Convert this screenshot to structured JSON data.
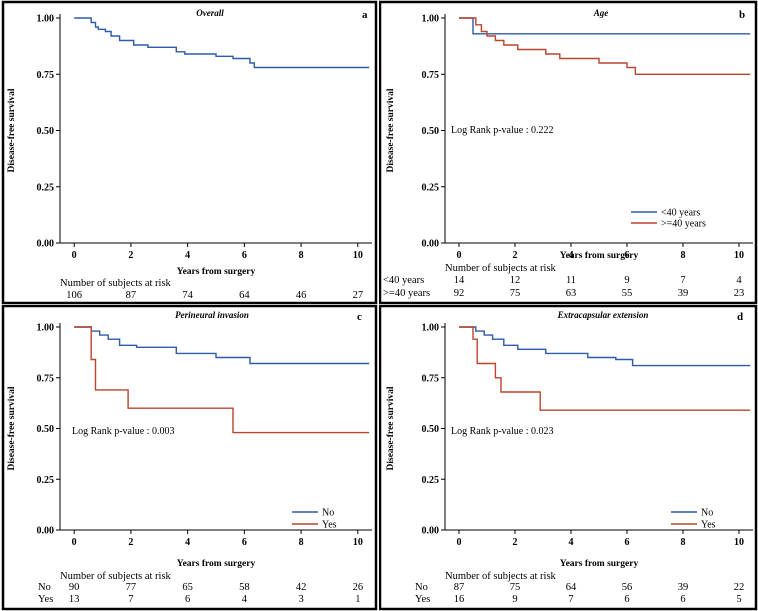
{
  "chart_data": [
    {
      "type": "line",
      "panel": "a",
      "title": "Overall",
      "xlabel": "Years from surgery",
      "ylabel": "Disease-free survival",
      "xlim": [
        -0.5,
        10.5
      ],
      "ylim": [
        0,
        1
      ],
      "xticks": [
        "0",
        "2",
        "4",
        "6",
        "8",
        "10"
      ],
      "yticks": [
        "0.00",
        "0.25",
        "0.50",
        "0.75",
        "1.00"
      ],
      "series": [
        {
          "color": "#2e5aa8",
          "points": [
            [
              0,
              1
            ],
            [
              0.6,
              1
            ],
            [
              0.6,
              0.98
            ],
            [
              0.75,
              0.98
            ],
            [
              0.75,
              0.96
            ],
            [
              0.85,
              0.96
            ],
            [
              0.85,
              0.95
            ],
            [
              1.1,
              0.95
            ],
            [
              1.1,
              0.94
            ],
            [
              1.3,
              0.94
            ],
            [
              1.3,
              0.92
            ],
            [
              1.6,
              0.92
            ],
            [
              1.6,
              0.9
            ],
            [
              2.1,
              0.9
            ],
            [
              2.1,
              0.88
            ],
            [
              2.6,
              0.88
            ],
            [
              2.6,
              0.87
            ],
            [
              3.6,
              0.87
            ],
            [
              3.6,
              0.85
            ],
            [
              3.9,
              0.85
            ],
            [
              3.9,
              0.84
            ],
            [
              5.0,
              0.84
            ],
            [
              5.0,
              0.83
            ],
            [
              5.6,
              0.83
            ],
            [
              5.6,
              0.82
            ],
            [
              6.2,
              0.82
            ],
            [
              6.2,
              0.8
            ],
            [
              6.35,
              0.8
            ],
            [
              6.35,
              0.78
            ],
            [
              10.4,
              0.78
            ]
          ]
        }
      ],
      "risk_table": {
        "header": "Number of subjects at risk",
        "rows": [
          {
            "label": "",
            "values": [
              "106",
              "87",
              "74",
              "64",
              "46",
              "27"
            ]
          }
        ]
      }
    },
    {
      "type": "line",
      "panel": "b",
      "title": "Age",
      "xlabel": "Years from surgery",
      "ylabel": "Disease-free survival",
      "xlim": [
        -0.5,
        10.5
      ],
      "ylim": [
        0,
        1
      ],
      "xticks": [
        "0",
        "2",
        "4",
        "6",
        "8",
        "10"
      ],
      "yticks": [
        "0.00",
        "0.25",
        "0.50",
        "0.75",
        "1.00"
      ],
      "annotation": "Log Rank p-value :  0.222",
      "series": [
        {
          "name": "<40 years",
          "color": "#2e5aa8",
          "points": [
            [
              0,
              1
            ],
            [
              0.5,
              1
            ],
            [
              0.5,
              0.93
            ],
            [
              10.4,
              0.93
            ]
          ]
        },
        {
          "name": ">=40 years",
          "color": "#b8452e",
          "points": [
            [
              0,
              1
            ],
            [
              0.6,
              1
            ],
            [
              0.6,
              0.97
            ],
            [
              0.8,
              0.97
            ],
            [
              0.8,
              0.94
            ],
            [
              1.0,
              0.94
            ],
            [
              1.0,
              0.92
            ],
            [
              1.3,
              0.92
            ],
            [
              1.3,
              0.9
            ],
            [
              1.6,
              0.9
            ],
            [
              1.6,
              0.88
            ],
            [
              2.1,
              0.88
            ],
            [
              2.1,
              0.86
            ],
            [
              3.1,
              0.86
            ],
            [
              3.1,
              0.84
            ],
            [
              3.6,
              0.84
            ],
            [
              3.6,
              0.82
            ],
            [
              5.0,
              0.82
            ],
            [
              5.0,
              0.8
            ],
            [
              6.0,
              0.8
            ],
            [
              6.0,
              0.78
            ],
            [
              6.3,
              0.78
            ],
            [
              6.3,
              0.75
            ],
            [
              10.4,
              0.75
            ]
          ]
        }
      ],
      "risk_table": {
        "header": "Number of subjects at risk",
        "rows": [
          {
            "label": "<40 years",
            "values": [
              "14",
              "12",
              "11",
              "9",
              "7",
              "4"
            ]
          },
          {
            "label": ">=40 years",
            "values": [
              "92",
              "75",
              "63",
              "55",
              "39",
              "23"
            ]
          }
        ]
      }
    },
    {
      "type": "line",
      "panel": "c",
      "title": "Perineural invasion",
      "xlabel": "Years from surgery",
      "ylabel": "Disease-free survival",
      "xlim": [
        -0.5,
        10.5
      ],
      "ylim": [
        0,
        1
      ],
      "xticks": [
        "0",
        "2",
        "4",
        "6",
        "8",
        "10"
      ],
      "yticks": [
        "0.00",
        "0.25",
        "0.50",
        "0.75",
        "1.00"
      ],
      "annotation": "Log Rank p-value :  0.003",
      "series": [
        {
          "name": "No",
          "color": "#2e5aa8",
          "points": [
            [
              0,
              1
            ],
            [
              0.6,
              1
            ],
            [
              0.6,
              0.98
            ],
            [
              0.9,
              0.98
            ],
            [
              0.9,
              0.96
            ],
            [
              1.2,
              0.96
            ],
            [
              1.2,
              0.94
            ],
            [
              1.6,
              0.94
            ],
            [
              1.6,
              0.91
            ],
            [
              2.2,
              0.91
            ],
            [
              2.2,
              0.9
            ],
            [
              3.6,
              0.9
            ],
            [
              3.6,
              0.87
            ],
            [
              5.0,
              0.87
            ],
            [
              5.0,
              0.85
            ],
            [
              6.2,
              0.85
            ],
            [
              6.2,
              0.82
            ],
            [
              10.4,
              0.82
            ]
          ]
        },
        {
          "name": "Yes",
          "color": "#b8452e",
          "points": [
            [
              0,
              1
            ],
            [
              0.6,
              1
            ],
            [
              0.6,
              0.84
            ],
            [
              0.75,
              0.84
            ],
            [
              0.75,
              0.69
            ],
            [
              1.9,
              0.69
            ],
            [
              1.9,
              0.6
            ],
            [
              5.6,
              0.6
            ],
            [
              5.6,
              0.48
            ],
            [
              10.4,
              0.48
            ]
          ]
        }
      ],
      "risk_table": {
        "header": "Number of subjects at risk",
        "rows": [
          {
            "label": "No",
            "values": [
              "90",
              "77",
              "65",
              "58",
              "42",
              "26"
            ]
          },
          {
            "label": "Yes",
            "values": [
              "13",
              "7",
              "6",
              "4",
              "3",
              "1"
            ]
          }
        ]
      }
    },
    {
      "type": "line",
      "panel": "d",
      "title": "Extracapsular extension",
      "xlabel": "Years from surgery",
      "ylabel": "Disease-free survival",
      "xlim": [
        -0.5,
        10.5
      ],
      "ylim": [
        0,
        1
      ],
      "xticks": [
        "0",
        "2",
        "4",
        "6",
        "8",
        "10"
      ],
      "yticks": [
        "0.00",
        "0.25",
        "0.50",
        "0.75",
        "1.00"
      ],
      "annotation": "Log Rank p-value :  0.023",
      "series": [
        {
          "name": "No",
          "color": "#2e5aa8",
          "points": [
            [
              0,
              1
            ],
            [
              0.6,
              1
            ],
            [
              0.6,
              0.98
            ],
            [
              0.9,
              0.98
            ],
            [
              0.9,
              0.96
            ],
            [
              1.2,
              0.96
            ],
            [
              1.2,
              0.94
            ],
            [
              1.6,
              0.94
            ],
            [
              1.6,
              0.91
            ],
            [
              2.1,
              0.91
            ],
            [
              2.1,
              0.89
            ],
            [
              3.1,
              0.89
            ],
            [
              3.1,
              0.87
            ],
            [
              4.6,
              0.87
            ],
            [
              4.6,
              0.85
            ],
            [
              5.6,
              0.85
            ],
            [
              5.6,
              0.84
            ],
            [
              6.2,
              0.84
            ],
            [
              6.2,
              0.81
            ],
            [
              10.4,
              0.81
            ]
          ]
        },
        {
          "name": "Yes",
          "color": "#b8452e",
          "points": [
            [
              0,
              1
            ],
            [
              0.5,
              1
            ],
            [
              0.5,
              0.94
            ],
            [
              0.65,
              0.94
            ],
            [
              0.65,
              0.82
            ],
            [
              1.3,
              0.82
            ],
            [
              1.3,
              0.75
            ],
            [
              1.5,
              0.75
            ],
            [
              1.5,
              0.68
            ],
            [
              2.9,
              0.68
            ],
            [
              2.9,
              0.59
            ],
            [
              10.4,
              0.59
            ]
          ]
        }
      ],
      "risk_table": {
        "header": "Number of subjects at risk",
        "rows": [
          {
            "label": "No",
            "values": [
              "87",
              "75",
              "64",
              "56",
              "39",
              "22"
            ]
          },
          {
            "label": "Yes",
            "values": [
              "16",
              "9",
              "7",
              "6",
              "6",
              "5"
            ]
          }
        ]
      }
    }
  ]
}
